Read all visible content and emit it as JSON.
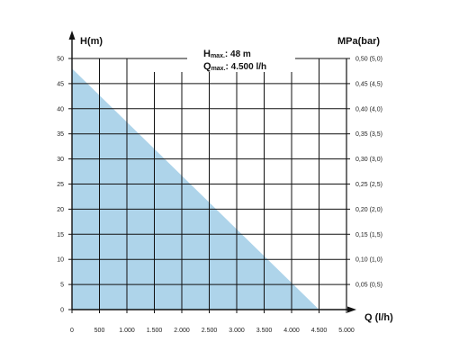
{
  "chart_data": {
    "type": "area",
    "title": "",
    "xlabel": "Q (l/h)",
    "ylabel": "H(m)",
    "y2label": "MPa(bar)",
    "xlim": [
      0,
      5000
    ],
    "ylim": [
      0,
      50
    ],
    "x_ticks": [
      0,
      500,
      1000,
      1500,
      2000,
      2500,
      3000,
      3500,
      4000,
      4500,
      5000
    ],
    "x_tick_labels": [
      "0",
      "500",
      "1.000",
      "1.500",
      "2.000",
      "2.500",
      "3.000",
      "3.500",
      "4.000",
      "4.500",
      "5.000"
    ],
    "y_ticks": [
      0,
      5,
      10,
      15,
      20,
      25,
      30,
      35,
      40,
      45,
      50
    ],
    "y_tick_labels": [
      "0",
      "5",
      "10",
      "15",
      "20",
      "25",
      "30",
      "35",
      "40",
      "45",
      "50"
    ],
    "y2_ticks": [
      5,
      10,
      15,
      20,
      25,
      30,
      35,
      40,
      45,
      50
    ],
    "y2_tick_labels": [
      "0,05 (0,5)",
      "0,10 (1,0)",
      "0,15 (1,5)",
      "0,20 (2,0)",
      "0,25 (2,5)",
      "0,30 (3,0)",
      "0,35 (3,5)",
      "0,40 (4,0)",
      "0,45 (4,5)",
      "0,50 (5,0)"
    ],
    "grid": true,
    "series": [
      {
        "x": [
          0,
          4500
        ],
        "y": [
          48,
          0
        ]
      }
    ],
    "fill_color": "#aed4ea",
    "annotations": {
      "hmax_main": "H",
      "hmax_sub": "max.",
      "hmax_value": ": 48 m",
      "qmax_main": "Q",
      "qmax_sub": "max.",
      "qmax_value": ": 4.500 l/h"
    }
  }
}
